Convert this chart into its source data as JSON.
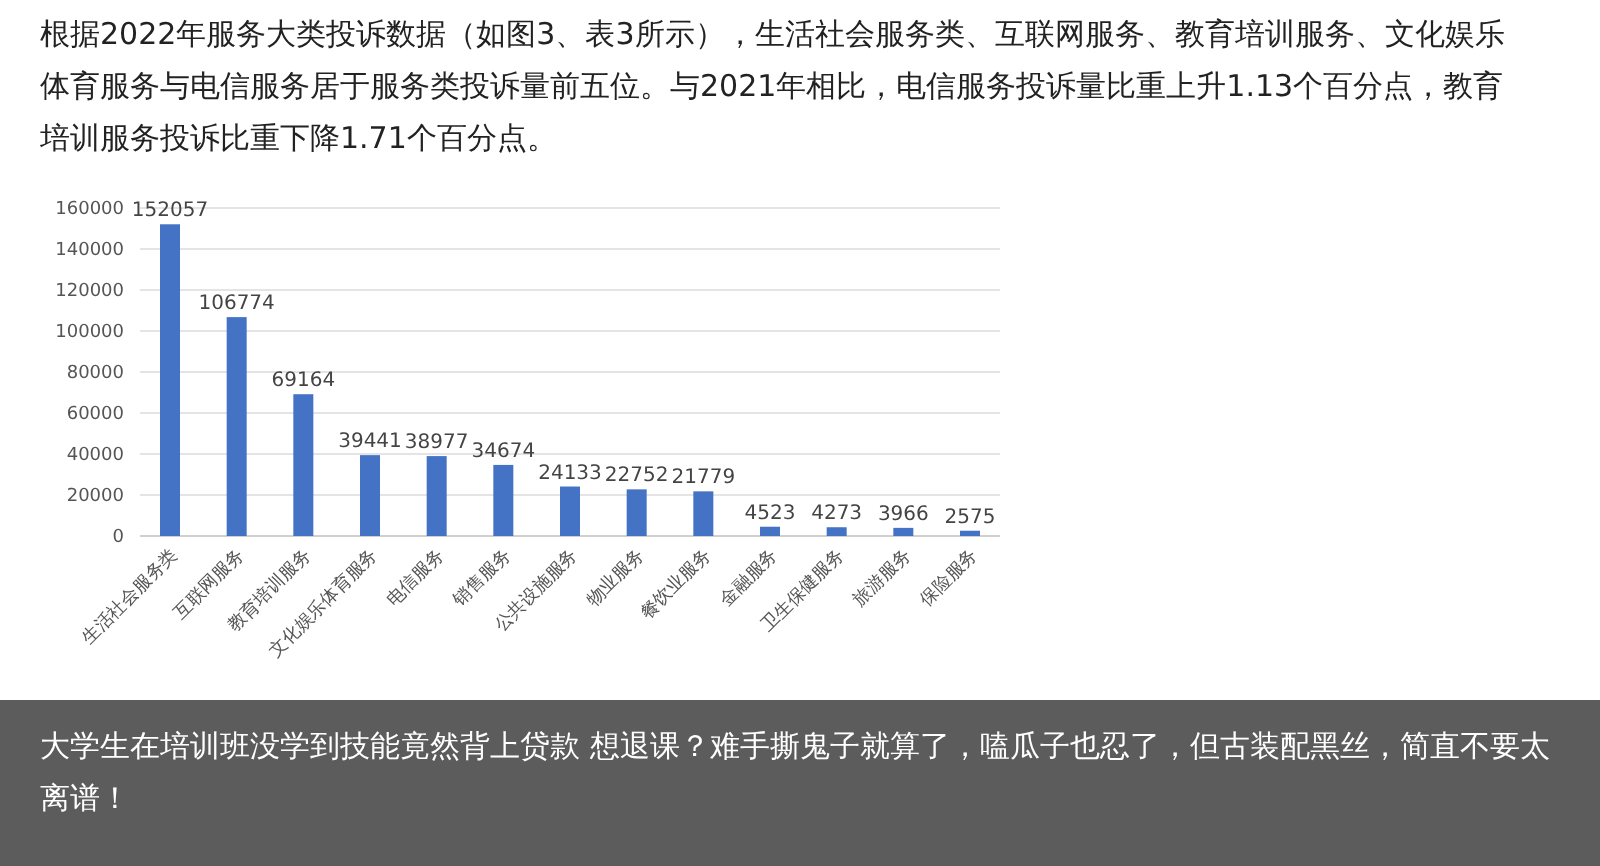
{
  "chart_data": {
    "type": "bar",
    "title": "根据2022年服务大类投诉数据（如图3、表3所示），生活社会服务类、互联网服务、教育培训服务、文化娱乐体育服务与电信服务居于服务类投诉量前五位。与2021年相比，电信服务投诉量比重上升1.13个百分点，教育培训服务投诉比重下降1.71个百分点。",
    "categories": [
      "生活社会服务类",
      "互联网服务",
      "教育培训服务",
      "文化娱乐体育服务",
      "电信服务",
      "销售服务",
      "公共设施服务",
      "物业服务",
      "餐饮业服务",
      "金融服务",
      "卫生保健服务",
      "旅游服务",
      "保险服务"
    ],
    "values": [
      152057,
      106774,
      69164,
      39441,
      38977,
      34674,
      24133,
      22752,
      21779,
      4523,
      4273,
      3966,
      2575
    ],
    "color": "#4472c4",
    "ylim": [
      0,
      160000
    ],
    "yticks": [
      0,
      20000,
      40000,
      60000,
      80000,
      100000,
      120000,
      140000,
      160000
    ],
    "grid": "y",
    "data_labels": true,
    "annotations": [
      "大学生在培训班没学到技能竟然背上贷款 想退课？难手撕鬼子就算了，嗑瓜子也忍了，但古装配黑丝，简直不要太离谱！"
    ]
  }
}
